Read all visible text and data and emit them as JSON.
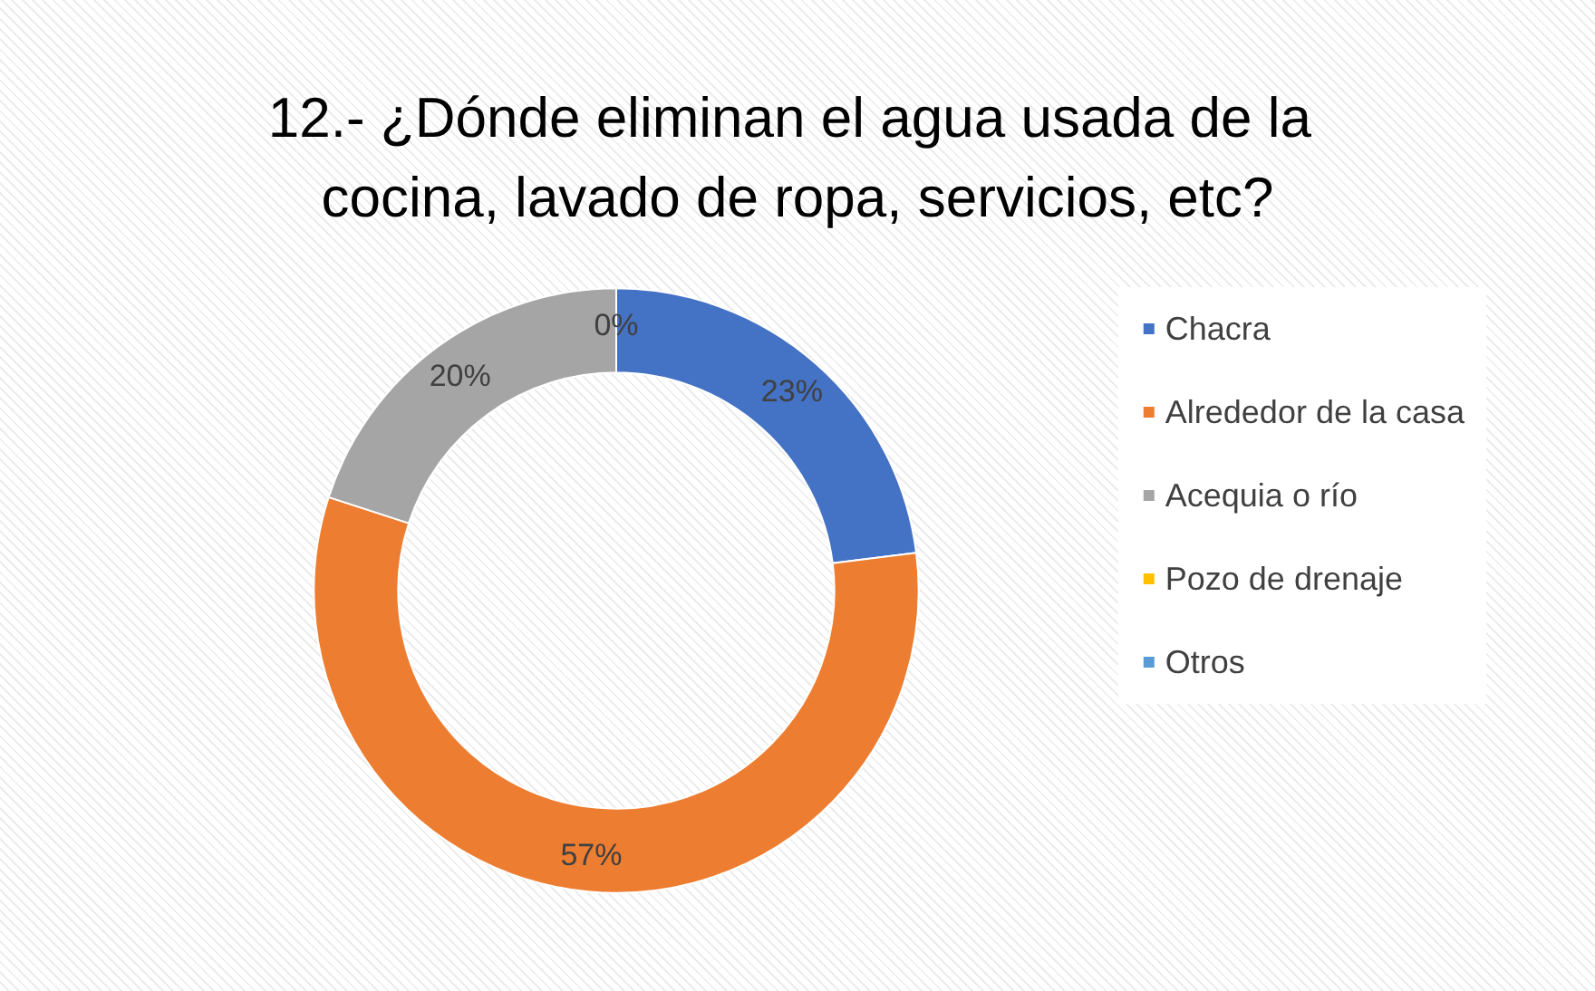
{
  "chart_data": {
    "type": "donut",
    "title": "12.- ¿Dónde eliminan el agua usada de la cocina, lavado de ropa, servicios, etc?",
    "categories": [
      "Chacra",
      "Alrededor de la casa",
      "Acequia o río",
      "Pozo de drenaje",
      "Otros"
    ],
    "values": [
      23,
      57,
      20,
      0,
      0
    ],
    "colors": [
      "#4472c4",
      "#ed7d31",
      "#a5a5a5",
      "#ffc000",
      "#5b9bd5"
    ],
    "value_labels": [
      "23%",
      "57%",
      "20%",
      "0%",
      null
    ],
    "legend": "right"
  }
}
